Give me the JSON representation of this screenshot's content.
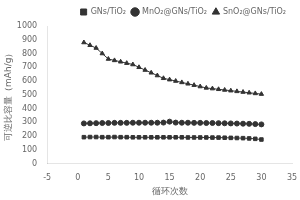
{
  "chart_data": {
    "type": "line",
    "xlabel": "循环次数",
    "ylabel": "可逆比容量（mAh/g）",
    "xlim": [
      -5,
      35
    ],
    "ylim": [
      0,
      1000
    ],
    "xticks": [
      -5,
      0,
      5,
      10,
      15,
      20,
      25,
      30,
      35
    ],
    "yticks": [
      0,
      100,
      200,
      300,
      400,
      500,
      600,
      700,
      800,
      900,
      1000
    ],
    "grid": false,
    "legend": "upper right",
    "x": [
      1,
      2,
      3,
      4,
      5,
      6,
      7,
      8,
      9,
      10,
      11,
      12,
      13,
      14,
      15,
      16,
      17,
      18,
      19,
      20,
      21,
      22,
      23,
      24,
      25,
      26,
      27,
      28,
      29,
      30
    ],
    "series": [
      {
        "name": "GNs/TiO₂",
        "color": "#333333",
        "marker": "square",
        "values": [
          192,
          193,
          193,
          192,
          192,
          193,
          192,
          192,
          191,
          191,
          191,
          191,
          191,
          191,
          191,
          191,
          191,
          190,
          190,
          190,
          190,
          189,
          189,
          188,
          187,
          186,
          185,
          183,
          180,
          175
        ]
      },
      {
        "name": "MnO₂@GNs/TiO₂",
        "color": "#333333",
        "marker": "circle",
        "values": [
          292,
          293,
          294,
          295,
          295,
          296,
          296,
          296,
          297,
          297,
          297,
          297,
          297,
          298,
          305,
          298,
          297,
          297,
          296,
          296,
          295,
          295,
          294,
          293,
          292,
          291,
          290,
          289,
          287,
          285
        ]
      },
      {
        "name": "SnO₂@GNs/TiO₂",
        "color": "#333333",
        "marker": "triangle",
        "values": [
          880,
          860,
          840,
          800,
          760,
          750,
          740,
          730,
          720,
          700,
          680,
          660,
          640,
          620,
          610,
          600,
          590,
          580,
          570,
          560,
          550,
          545,
          540,
          535,
          530,
          525,
          520,
          515,
          510,
          505
        ]
      }
    ]
  }
}
